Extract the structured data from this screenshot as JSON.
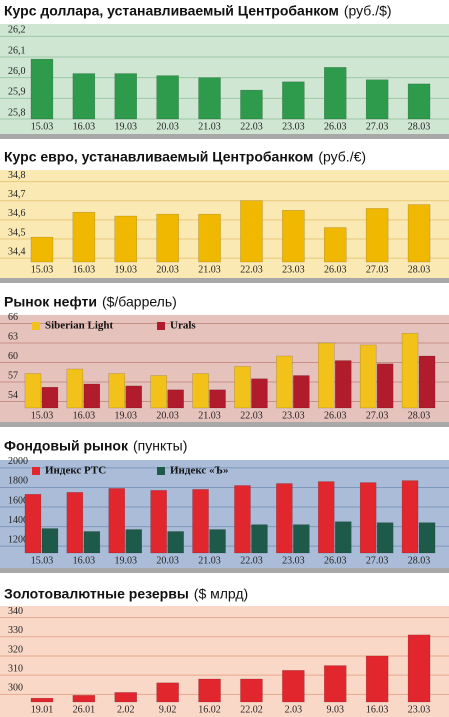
{
  "chart_data": [
    {
      "type": "bar",
      "title": "Курс доллара, устанавливаемый Центробанком",
      "subtitle": "(руб./$)",
      "categories": [
        "15.03",
        "16.03",
        "19.03",
        "20.03",
        "21.03",
        "22.03",
        "23.03",
        "26.03",
        "27.03",
        "28.03"
      ],
      "values": [
        26.09,
        26.02,
        26.02,
        26.01,
        26.0,
        25.94,
        25.98,
        26.05,
        25.99,
        25.97
      ],
      "color": "#2e9a4c",
      "ylim": [
        25.8,
        26.25
      ],
      "yticks": [
        {
          "value": 25.8,
          "label": "25,8"
        },
        {
          "value": 25.9,
          "label": "25,9"
        },
        {
          "value": 26.0,
          "label": "26,0"
        },
        {
          "value": 26.1,
          "label": "26,1"
        },
        {
          "value": 26.2,
          "label": "26,2"
        }
      ],
      "grid": true
    },
    {
      "type": "bar",
      "title": "Курс евро, устанавливаемый Центробанком",
      "subtitle": "(руб./€)",
      "categories": [
        "15.03",
        "16.03",
        "19.03",
        "20.03",
        "21.03",
        "22.03",
        "23.03",
        "26.03",
        "27.03",
        "28.03"
      ],
      "values": [
        34.51,
        34.64,
        34.62,
        34.63,
        34.63,
        34.7,
        34.65,
        34.56,
        34.66,
        34.68
      ],
      "color": "#f0b800",
      "ylim": [
        34.38,
        34.85
      ],
      "yticks": [
        {
          "value": 34.4,
          "label": "34,4"
        },
        {
          "value": 34.5,
          "label": "34,5"
        },
        {
          "value": 34.6,
          "label": "34,6"
        },
        {
          "value": 34.7,
          "label": "34,7"
        },
        {
          "value": 34.8,
          "label": "34,8"
        }
      ],
      "grid": true
    },
    {
      "type": "bar",
      "title": "Рынок нефти",
      "subtitle": "($/баррель)",
      "categories": [
        "15.03",
        "16.03",
        "19.03",
        "20.03",
        "21.03",
        "22.03",
        "23.03",
        "26.03",
        "27.03",
        "28.03"
      ],
      "series": [
        {
          "name": "Siberian Light",
          "color": "#f2c21a",
          "values": [
            58.3,
            59.0,
            58.3,
            58.0,
            58.3,
            59.4,
            61.0,
            63.0,
            62.7,
            64.5
          ]
        },
        {
          "name": "Urals",
          "color": "#b01c2c",
          "values": [
            56.2,
            56.7,
            56.4,
            55.8,
            55.8,
            57.5,
            58.0,
            60.3,
            59.8,
            61.0
          ]
        }
      ],
      "ylim": [
        53,
        67
      ],
      "yticks": [
        54,
        57,
        60,
        63,
        66
      ],
      "grid": true
    },
    {
      "type": "bar",
      "title": "Фондовый рынок",
      "subtitle": "(пункты)",
      "categories": [
        "15.03",
        "16.03",
        "19.03",
        "20.03",
        "21.03",
        "22.03",
        "23.03",
        "26.03",
        "27.03",
        "28.03"
      ],
      "series": [
        {
          "name": "Индекс РТС",
          "color": "#e2262e",
          "values": [
            1730,
            1750,
            1790,
            1770,
            1780,
            1820,
            1840,
            1860,
            1850,
            1870
          ]
        },
        {
          "name": "Индекс «Ъ»",
          "color": "#1e5a4a",
          "values": [
            1380,
            1350,
            1370,
            1350,
            1370,
            1420,
            1420,
            1450,
            1440,
            1440
          ]
        }
      ],
      "ylim": [
        1130,
        2060
      ],
      "yticks": [
        1200,
        1400,
        1600,
        1800,
        2000
      ],
      "grid": true
    },
    {
      "type": "bar",
      "title": "Золотовалютные резервы",
      "subtitle": "($ млрд)",
      "categories": [
        "19.01",
        "26.01",
        "2.02",
        "9.02",
        "16.02",
        "22.02",
        "2.03",
        "9.03",
        "16.03",
        "23.03"
      ],
      "values": [
        298,
        299.5,
        301,
        306,
        308,
        308,
        312.5,
        315,
        320,
        331
      ],
      "color": "#e2262e",
      "ylim": [
        296,
        345
      ],
      "yticks": [
        300,
        310,
        320,
        330,
        340
      ],
      "grid": true
    }
  ]
}
